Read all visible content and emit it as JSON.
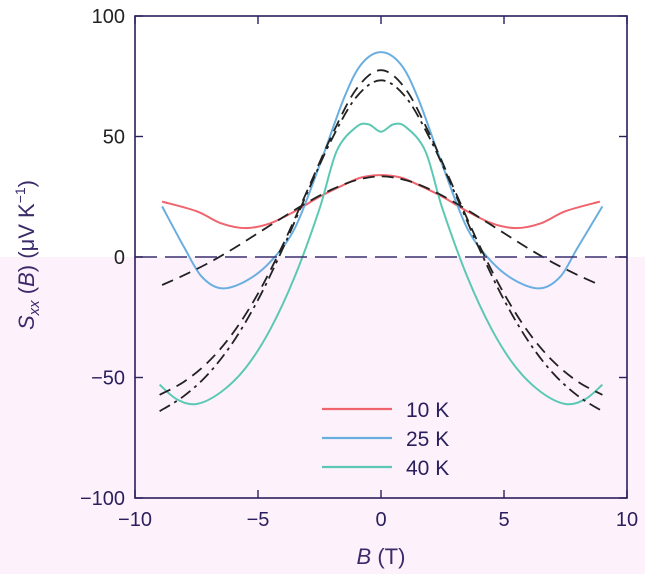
{
  "chart_data": {
    "type": "line",
    "xlabel": {
      "italic": "B",
      "rest": " (T)"
    },
    "ylabel": {
      "s": "S",
      "sub": "xx",
      "open": " (",
      "italic": "B",
      "close": ") (μV K",
      "sup": "−1",
      "end": ")"
    },
    "xlim": [
      -10,
      10
    ],
    "ylim": [
      -100,
      100
    ],
    "xticks": [
      -10,
      -5,
      0,
      5,
      10
    ],
    "xtick_labels": [
      "−10",
      "−5",
      "0",
      "5",
      "10"
    ],
    "yticks": [
      -100,
      -50,
      0,
      50,
      100
    ],
    "ytick_labels": [
      "−100",
      "−50",
      "0",
      "50",
      "100"
    ],
    "grid": false,
    "zero_line": true,
    "legend_position": "bottom-center",
    "series": [
      {
        "name": "10 K",
        "color": "#f0646e",
        "style": "solid",
        "x": [
          -8.9,
          -7.5,
          -6.5,
          -5.5,
          -4.5,
          -3.5,
          -2.5,
          -1.5,
          -0.8,
          0,
          0.8,
          1.5,
          2.5,
          3.5,
          4.5,
          5.5,
          6.5,
          7.5,
          8.9
        ],
        "y": [
          23,
          19,
          14,
          12,
          14,
          19,
          25,
          30,
          33,
          34,
          33,
          30,
          25,
          19,
          14,
          12,
          14,
          19,
          23
        ]
      },
      {
        "name": "25 K",
        "color": "#6aaee0",
        "style": "solid",
        "x": [
          -8.9,
          -8.0,
          -7.3,
          -6.5,
          -5.5,
          -4.5,
          -3.5,
          -2.5,
          -1.5,
          -0.8,
          0,
          0.8,
          1.5,
          2.5,
          3.5,
          4.5,
          5.5,
          6.5,
          7.3,
          8.0,
          9.0
        ],
        "y": [
          21,
          4,
          -8,
          -13,
          -10,
          -2,
          12,
          38,
          66,
          80,
          85,
          80,
          66,
          38,
          12,
          -2,
          -10,
          -13,
          -8,
          4,
          21
        ]
      },
      {
        "name": "40 K",
        "color": "#5cc8b4",
        "style": "solid",
        "x": [
          -9.0,
          -8.3,
          -7.5,
          -6.5,
          -5.5,
          -4.5,
          -3.5,
          -2.5,
          -1.8,
          -1.0,
          -0.5,
          0,
          0.5,
          1.0,
          1.8,
          2.5,
          3.5,
          4.5,
          5.5,
          6.5,
          7.5,
          8.3,
          9.0
        ],
        "y": [
          -53,
          -59,
          -61,
          -56,
          -46,
          -30,
          -8,
          20,
          44,
          54,
          55,
          52,
          55,
          54,
          44,
          20,
          -8,
          -30,
          -46,
          -56,
          -61,
          -59,
          -53
        ]
      },
      {
        "color": "#222222",
        "style": "dash",
        "x": [
          -8.9,
          -8,
          -7,
          -6,
          -5,
          -4,
          -3,
          -2,
          -1,
          0,
          1,
          2,
          3,
          4,
          5,
          6,
          7,
          8,
          8.9
        ],
        "y": [
          -11.6,
          -7.5,
          -2.4,
          3.5,
          9.9,
          16.4,
          22.6,
          28,
          31.9,
          33.5,
          31.9,
          28,
          22.6,
          16.4,
          9.9,
          3.5,
          -2.4,
          -7.5,
          -11.6
        ]
      },
      {
        "color": "#222222",
        "style": "dash",
        "x": [
          -9,
          -8,
          -7,
          -6,
          -5,
          -4,
          -3,
          -2,
          -1,
          0,
          1,
          2,
          3,
          4,
          5,
          6,
          7,
          8,
          9
        ],
        "y": [
          -57.2,
          -51.7,
          -43.3,
          -31.3,
          -15.2,
          4.8,
          27.5,
          50.4,
          69.7,
          77.5,
          69.7,
          50.4,
          27.5,
          4.8,
          -15.2,
          -31.3,
          -43.3,
          -51.7,
          -57.2
        ]
      },
      {
        "color": "#222222",
        "style": "dashdot",
        "x": [
          -9,
          -8,
          -7,
          -6,
          -5,
          -4,
          -3,
          -2,
          -1,
          0,
          1,
          2,
          3,
          4,
          5,
          6,
          7,
          8,
          9
        ],
        "y": [
          -64,
          -57.6,
          -48.3,
          -35.1,
          -17.8,
          3.3,
          26.6,
          48.9,
          66.4,
          73.3,
          66.4,
          48.9,
          26.6,
          3.3,
          -17.8,
          -35.1,
          -48.3,
          -57.6,
          -64
        ]
      }
    ]
  }
}
